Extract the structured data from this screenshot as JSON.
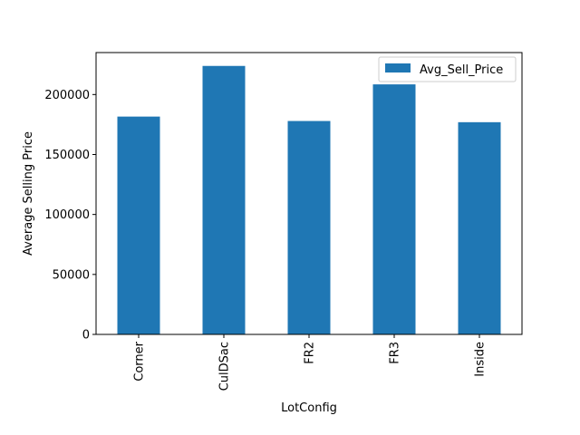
{
  "chart_data": {
    "type": "bar",
    "title": "",
    "xlabel": "LotConfig",
    "ylabel": "Average Selling Price",
    "categories": [
      "Corner",
      "CulDSac",
      "FR2",
      "FR3",
      "Inside"
    ],
    "series": [
      {
        "name": "Avg_Sell_Price",
        "values": [
          181624,
          223855,
          177934,
          208475,
          176938
        ]
      }
    ],
    "ylim": [
      0,
      235000
    ],
    "yticks": [
      0,
      50000,
      100000,
      150000,
      200000
    ],
    "ytick_labels": [
      "0",
      "50000",
      "100000",
      "150000",
      "200000"
    ],
    "grid": false,
    "legend_position": "top-right",
    "bar_color": "#1f77b4"
  }
}
